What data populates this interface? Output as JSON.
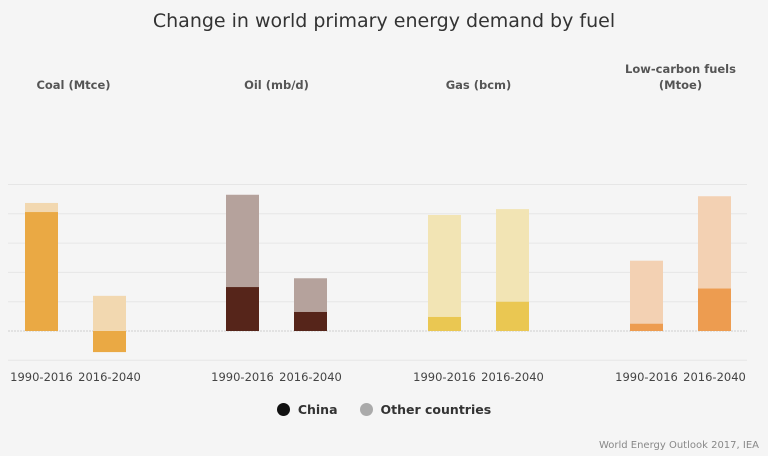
{
  "chart_data": {
    "type": "bar",
    "stacked": true,
    "title": "Change in world primary energy demand by fuel",
    "categories": [
      "1990-2016",
      "2016-2040"
    ],
    "grid": true,
    "value_scale_note_units": "gridline intervals (no axis values printed)",
    "ylim": [
      -1,
      5
    ],
    "legend": {
      "placement": "bottom-center",
      "entries": [
        {
          "name": "China",
          "color": "#111111"
        },
        {
          "name": "Other countries",
          "color": "#aaaaaa"
        }
      ]
    },
    "panels": [
      {
        "title": [
          "Coal (Mtce)"
        ],
        "colors": {
          "china": "#eaa944",
          "other": "#f2d8b0"
        },
        "series": [
          {
            "name": "China",
            "values": [
              4.06,
              -0.72
            ]
          },
          {
            "name": "Other countries",
            "values": [
              0.31,
              1.2
            ]
          }
        ]
      },
      {
        "title": [
          "Oil (mb/d)"
        ],
        "colors": {
          "china": "#56251a",
          "other": "#b5a29c"
        },
        "series": [
          {
            "name": "China",
            "values": [
              1.5,
              0.65
            ]
          },
          {
            "name": "Other countries",
            "values": [
              3.15,
              1.15
            ]
          }
        ]
      },
      {
        "title": [
          "Gas (bcm)"
        ],
        "colors": {
          "china": "#eac752",
          "other": "#f2e4b4"
        },
        "series": [
          {
            "name": "China",
            "values": [
              0.48,
              1.0
            ]
          },
          {
            "name": "Other countries",
            "values": [
              3.48,
              3.16
            ]
          }
        ]
      },
      {
        "title": [
          "Low-carbon fuels",
          "(Mtoe)"
        ],
        "colors": {
          "china": "#ed9c50",
          "other": "#f3d1b3"
        },
        "series": [
          {
            "name": "China",
            "values": [
              0.25,
              1.45
            ]
          },
          {
            "name": "Other countries",
            "values": [
              2.15,
              3.15
            ]
          }
        ]
      }
    ]
  },
  "source": "World Energy Outlook 2017, IEA"
}
